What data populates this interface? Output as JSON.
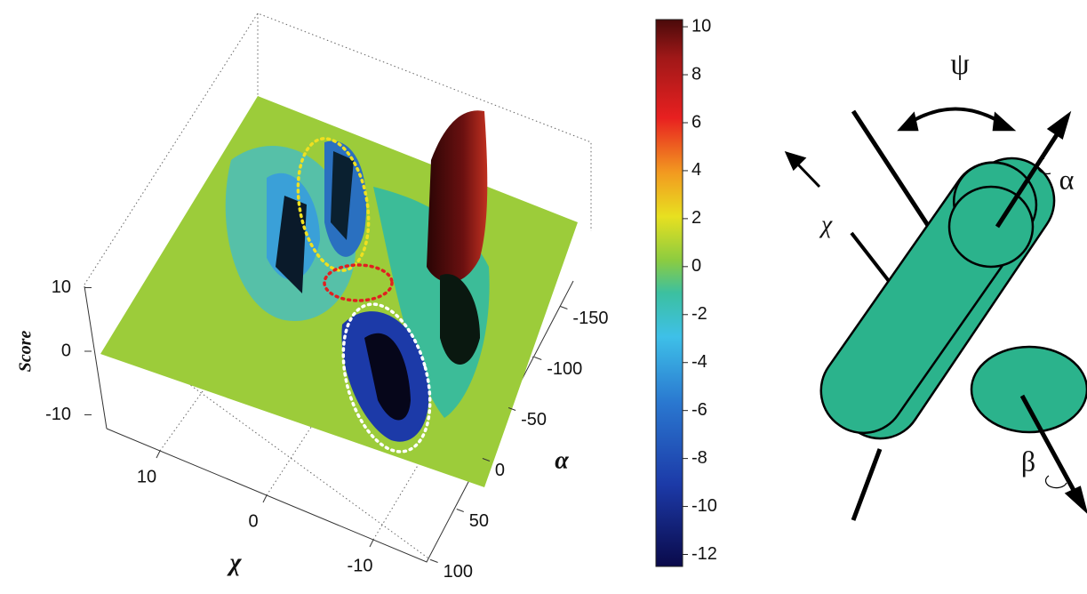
{
  "chart_data": {
    "type": "surface3d",
    "zlabel": "Score",
    "xlabel": "χ",
    "ylabel": "α",
    "zlim": [
      -10,
      10
    ],
    "zticks": [
      10,
      0,
      -10
    ],
    "xlim": [
      15,
      -15
    ],
    "xticks": [
      10,
      0,
      -10
    ],
    "ylim": [
      125,
      -175
    ],
    "yticks": [
      -150,
      -100,
      -50,
      0,
      50,
      100
    ],
    "colorbar": {
      "clim": [
        -12.5,
        10.3
      ],
      "ticks": [
        10,
        8,
        6,
        4,
        2,
        0,
        -2,
        -4,
        -6,
        -8,
        -10,
        -12
      ]
    }
  },
  "diagram": {
    "labels": [
      "ψ",
      "α",
      "χ",
      "β"
    ]
  }
}
